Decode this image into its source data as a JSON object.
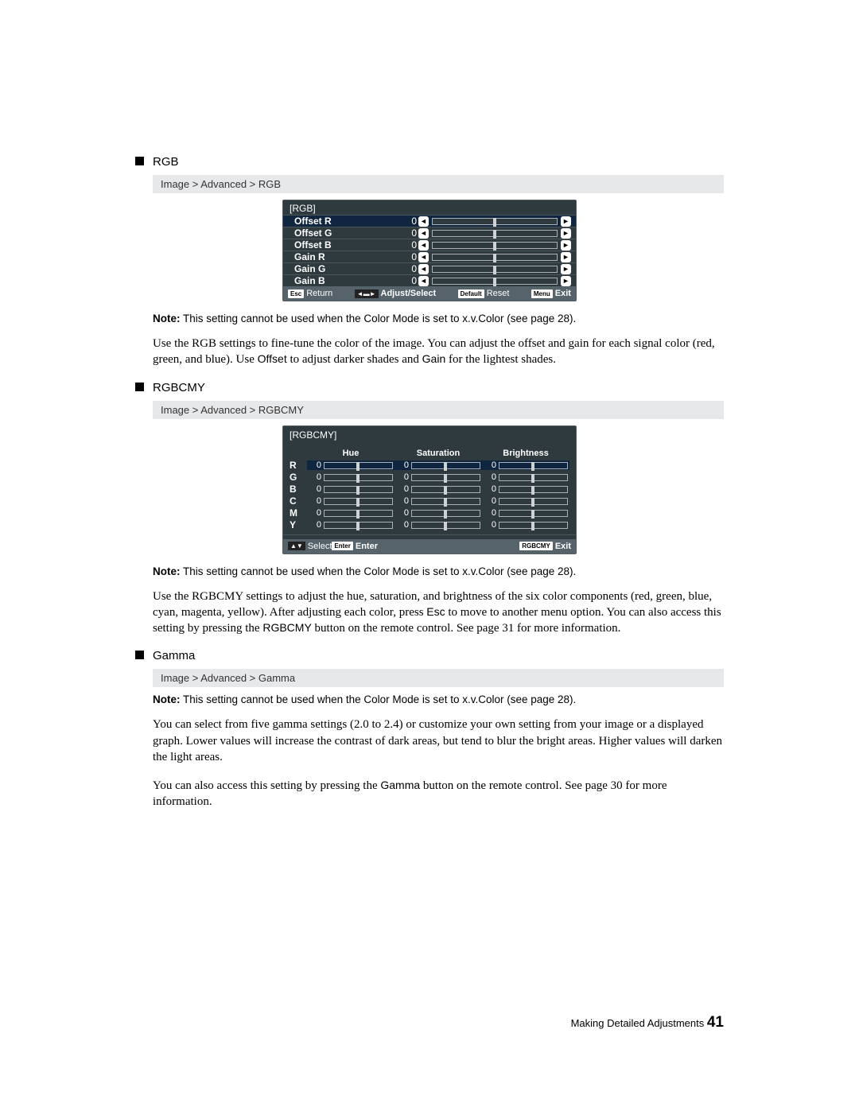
{
  "rgb": {
    "heading": "RGB",
    "breadcrumb": "Image > Advanced > RGB",
    "osd": {
      "title": "[RGB]",
      "rows": [
        {
          "label": "Offset R",
          "value": "0"
        },
        {
          "label": "Offset G",
          "value": "0"
        },
        {
          "label": "Offset B",
          "value": "0"
        },
        {
          "label": "Gain R",
          "value": "0"
        },
        {
          "label": "Gain G",
          "value": "0"
        },
        {
          "label": "Gain B",
          "value": "0"
        }
      ],
      "footer": {
        "esc_key": "Esc",
        "esc_label": "Return",
        "adj_key": "◄▬►",
        "adj_label": "Adjust/Select",
        "def_key": "Default",
        "def_label": "Reset",
        "menu_key": "Menu",
        "menu_label": "Exit"
      }
    },
    "note_strong": "Note:",
    "note_text": " This setting cannot be used when the Color Mode is set to x.v.Color (see page 28).",
    "body_1a": "Use the RGB settings to fine-tune the color of the image. You can adjust the offset and gain for each signal color (red, green, and blue). Use ",
    "body_1b": "Offset",
    "body_1c": " to adjust darker shades and ",
    "body_1d": "Gain",
    "body_1e": " for the lightest shades."
  },
  "rgbcmy": {
    "heading": "RGBCMY",
    "breadcrumb": "Image > Advanced > RGBCMY",
    "osd": {
      "title": "[RGBCMY]",
      "columns": [
        "Hue",
        "Saturation",
        "Brightness"
      ],
      "rows": [
        {
          "label": "R",
          "vals": [
            "0",
            "0",
            "0"
          ]
        },
        {
          "label": "G",
          "vals": [
            "0",
            "0",
            "0"
          ]
        },
        {
          "label": "B",
          "vals": [
            "0",
            "0",
            "0"
          ]
        },
        {
          "label": "C",
          "vals": [
            "0",
            "0",
            "0"
          ]
        },
        {
          "label": "M",
          "vals": [
            "0",
            "0",
            "0"
          ]
        },
        {
          "label": "Y",
          "vals": [
            "0",
            "0",
            "0"
          ]
        }
      ],
      "footer": {
        "sel_key": "▲▼",
        "sel_label": "Select",
        "ent_key": "Enter",
        "ent_label": "Enter",
        "exit_key": "RGBCMY",
        "exit_label": "Exit"
      }
    },
    "note_strong": "Note:",
    "note_text": " This setting cannot be used when the Color Mode is set to x.v.Color (see page 28).",
    "body_a": "Use the RGBCMY settings to adjust the hue, saturation, and brightness of the six color components (red, green, blue, cyan, magenta, yellow). After adjusting each color, press ",
    "body_b": "Esc",
    "body_c": " to move to another menu option. You can also access this setting by pressing the ",
    "body_d": "RGBCMY",
    "body_e": " button on the remote control. See page 31 for more information."
  },
  "gamma": {
    "heading": "Gamma",
    "breadcrumb": "Image > Advanced > Gamma",
    "note_strong": "Note:",
    "note_text": " This setting cannot be used when the Color Mode is set to x.v.Color (see page 28).",
    "body_1": "You can select from five gamma settings (2.0 to 2.4) or customize your own setting from your image or a displayed graph. Lower values will increase the contrast of dark areas, but tend to blur the bright areas. Higher values will darken the light areas.",
    "body_2a": "You can also access this setting by pressing the ",
    "body_2b": "Gamma",
    "body_2c": " button on the remote control. See page 30 for more information."
  },
  "footer": {
    "label": "Making Detailed Adjustments",
    "page": "41"
  },
  "icons": {
    "left": "◄",
    "right": "►"
  }
}
